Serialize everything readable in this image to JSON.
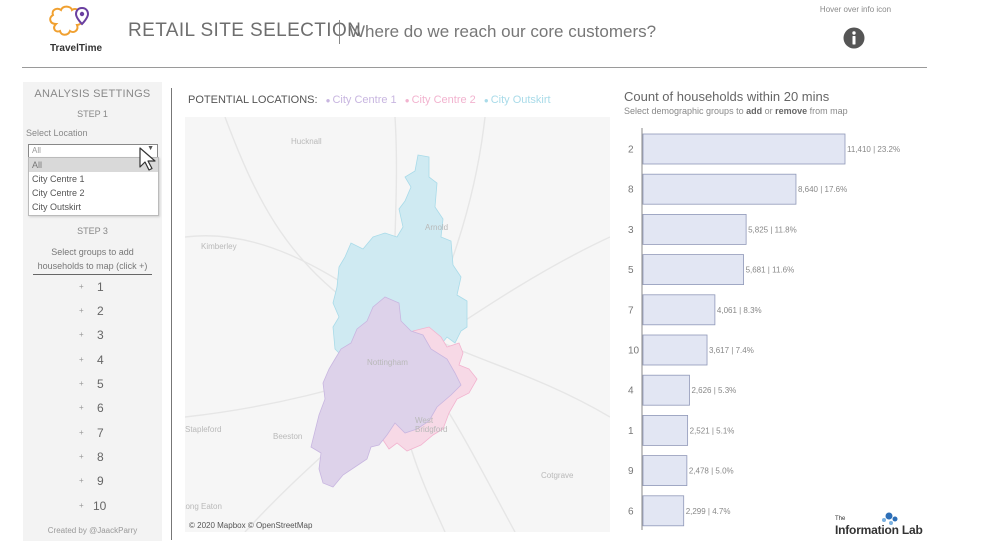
{
  "header": {
    "logo_text": "TravelTime",
    "title": "RETAIL SITE SELECTION",
    "subtitle": "Where do we reach our core customers?",
    "hover_hint": "Hover over info icon",
    "info_icon": "info-icon"
  },
  "sidebar": {
    "heading": "ANALYSIS SETTINGS",
    "step1": "STEP 1",
    "select_label": "Select Location",
    "select_value": "All",
    "dropdown_options": [
      "All",
      "City Centre 1",
      "City Centre 2",
      "City Outskirt"
    ],
    "selected_option": "All",
    "step3": "STEP 3",
    "select_groups_line1": "Select groups to add",
    "select_groups_line2": "households to map (click +)",
    "groups": [
      "1",
      "2",
      "3",
      "4",
      "5",
      "6",
      "7",
      "8",
      "9",
      "10"
    ],
    "created_by": "Created by @JaackParry"
  },
  "map": {
    "title": "POTENTIAL LOCATIONS:",
    "legend": [
      {
        "name": "City Centre 1",
        "color": "#c8b6e0"
      },
      {
        "name": "City Centre 2",
        "color": "#f2b3cf"
      },
      {
        "name": "City Outskirt",
        "color": "#a9dbe9"
      }
    ],
    "places": [
      "Hucknall",
      "Arnold",
      "Kimberley",
      "Nottingham",
      "West Bridgford",
      "Stapleford",
      "Beeston",
      "Cotgrave",
      "Long Eaton"
    ],
    "attribution": "© 2020 Mapbox © OpenStreetMap"
  },
  "chart_data": {
    "type": "bar",
    "orientation": "horizontal",
    "title": "Count of households within 20 mins",
    "subtitle_parts": [
      "Select demographic groups to ",
      "add",
      " or ",
      "remove",
      " from map"
    ],
    "categories": [
      "2",
      "8",
      "3",
      "5",
      "7",
      "10",
      "4",
      "1",
      "9",
      "6"
    ],
    "values": [
      11410,
      8640,
      5825,
      5681,
      4061,
      3617,
      2626,
      2521,
      2478,
      2299
    ],
    "labels": [
      "11,410 | 23.2%",
      "8,640 | 17.6%",
      "5,825 | 11.8%",
      "5,681 | 11.6%",
      "4,061 | 8.3%",
      "3,617 | 7.4%",
      "2,626 | 5.3%",
      "2,521 | 5.1%",
      "2,478 | 5.0%",
      "2,299 | 4.7%"
    ],
    "bar_color": "#e2e6f3",
    "bar_border": "#9098b8",
    "xlim": [
      0,
      11410
    ]
  },
  "footer": {
    "brand_the": "The",
    "brand": "Information Lab"
  }
}
